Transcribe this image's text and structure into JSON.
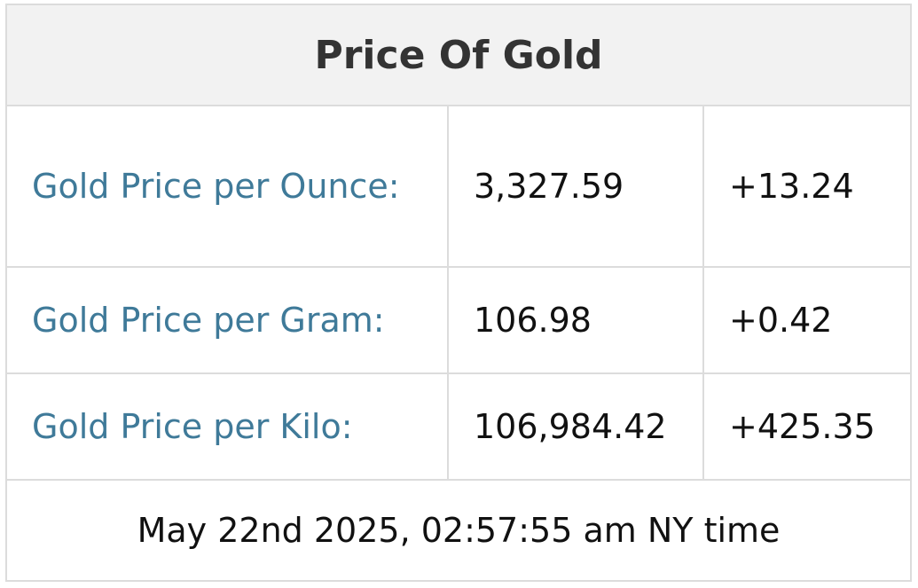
{
  "table": {
    "title": "Price Of Gold",
    "rows": [
      [
        "Gold Price per Ounce:",
        "3,327.59",
        "+13.24"
      ],
      [
        "Gold Price per Gram:",
        "106.98",
        "+0.42"
      ],
      [
        "Gold Price per Kilo:",
        "106,984.42",
        "+425.35"
      ]
    ],
    "footer": "May 22nd 2025, 02:57:55 am NY time"
  }
}
